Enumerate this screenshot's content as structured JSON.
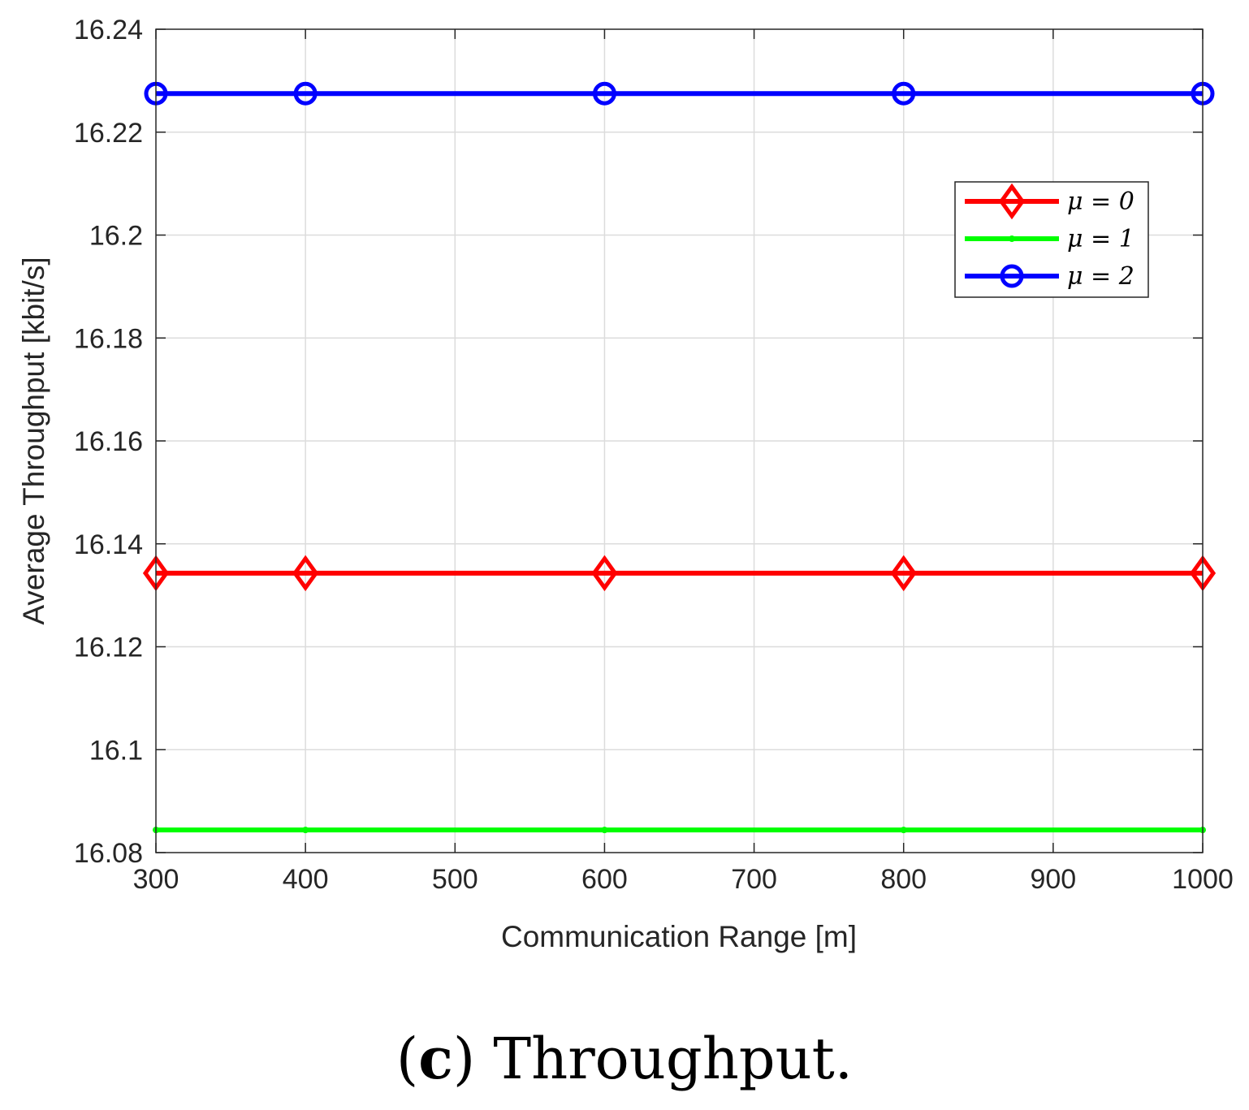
{
  "chart_data": {
    "type": "line",
    "title": "",
    "xlabel": "Communication Range [m]",
    "ylabel": "Average Throughput [kbit/s]",
    "xlim": [
      300,
      1000
    ],
    "ylim": [
      16.08,
      16.24
    ],
    "xticks": [
      300,
      400,
      500,
      600,
      700,
      800,
      900,
      1000
    ],
    "yticks": [
      16.08,
      16.1,
      16.12,
      16.14,
      16.16,
      16.18,
      16.2,
      16.22,
      16.24
    ],
    "ytick_labels": [
      "16.08",
      "16.1",
      "16.12",
      "16.14",
      "16.16",
      "16.18",
      "16.2",
      "16.22",
      "16.24"
    ],
    "grid": true,
    "legend_position": "top-right",
    "series": [
      {
        "name": "μ = 0",
        "color": "#ff0000",
        "marker": "diamond",
        "x": [
          300,
          400,
          600,
          800,
          1000
        ],
        "y": [
          16.1343,
          16.1343,
          16.1343,
          16.1343,
          16.1343
        ]
      },
      {
        "name": "μ = 1",
        "color": "#00ff00",
        "marker": "point",
        "x": [
          300,
          400,
          600,
          800,
          1000
        ],
        "y": [
          16.0844,
          16.0844,
          16.0844,
          16.0844,
          16.0844
        ]
      },
      {
        "name": "μ = 2",
        "color": "#0000ff",
        "marker": "circle",
        "x": [
          300,
          400,
          600,
          800,
          1000
        ],
        "y": [
          16.2275,
          16.2275,
          16.2275,
          16.2275,
          16.2275
        ]
      }
    ]
  },
  "caption": {
    "open_paren": "(",
    "letter": "c",
    "close_paren": ")",
    "text": " Throughput."
  }
}
